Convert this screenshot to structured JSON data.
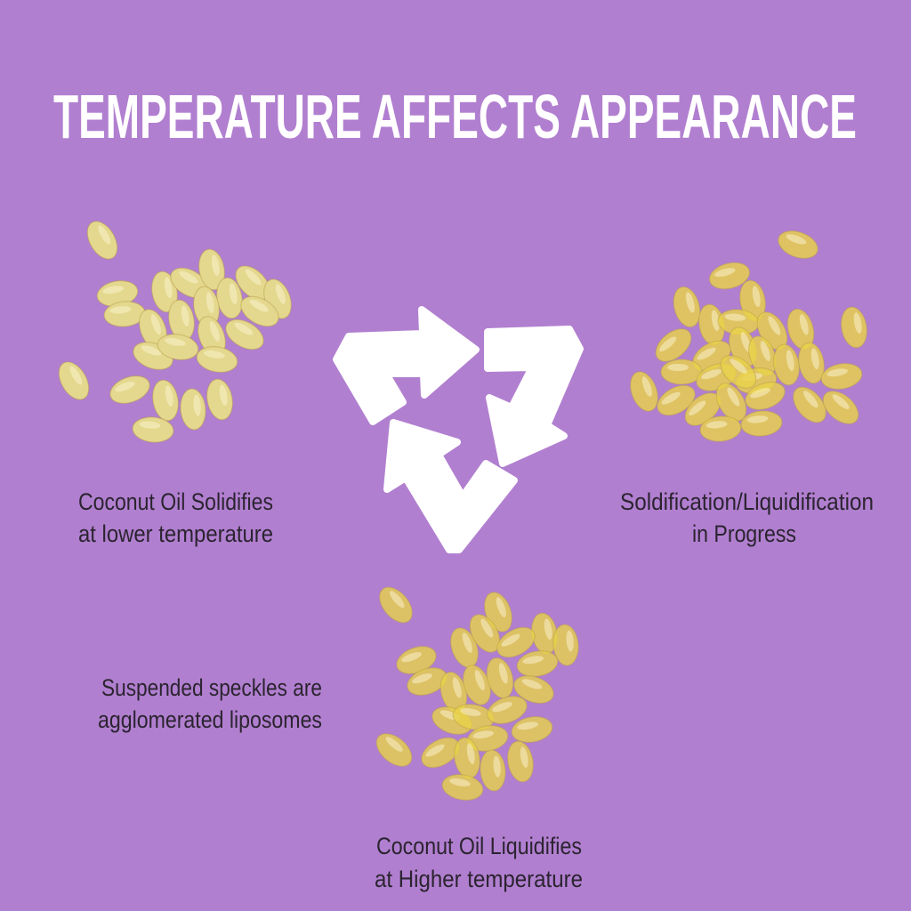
{
  "title": "TEMPERATURE AFFECTS APPEARANCE",
  "colors": {
    "background": "#b17fd0",
    "title": "#ffffff",
    "text": "#2b2430",
    "solid_capsule": "#e4d88e",
    "liquid_capsule": "#e9d24a"
  },
  "icon": "recycle-cycle-arrows-icon",
  "states": [
    {
      "name": "solid",
      "lines": [
        "Coconut Oil Solidifies",
        "at lower temperature"
      ]
    },
    {
      "name": "transition",
      "lines": [
        "Soldification/Liquidification",
        "in Progress"
      ]
    },
    {
      "name": "liquid",
      "lines": [
        "Coconut Oil Liquidifies",
        "at Higher temperature"
      ]
    }
  ],
  "note": {
    "lines": [
      "Suspended speckles are",
      "agglomerated liposomes"
    ]
  }
}
